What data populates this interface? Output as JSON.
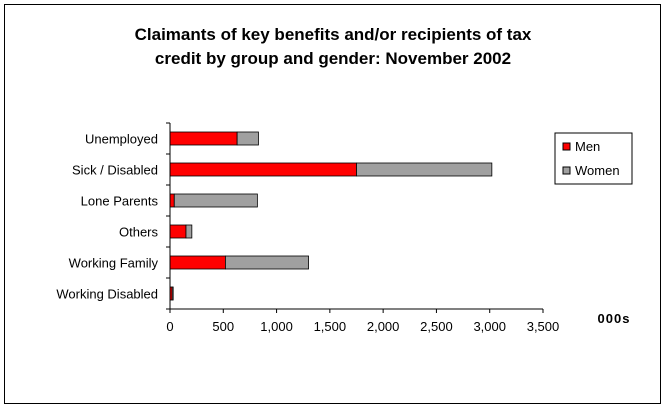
{
  "chart_data": {
    "type": "bar",
    "orientation": "horizontal",
    "stacked": true,
    "title_lines": [
      "Claimants of key benefits and/or recipients of tax",
      "credit by group and gender: November 2002"
    ],
    "xlabel": "000s",
    "categories": [
      "Unemployed",
      "Sick / Disabled",
      "Lone Parents",
      "Others",
      "Working Family",
      "Working Disabled"
    ],
    "series": [
      {
        "name": "Men",
        "color": "#ff0000",
        "values": [
          630,
          1750,
          40,
          150,
          520,
          20
        ]
      },
      {
        "name": "Women",
        "color": "#a0a0a0",
        "values": [
          200,
          1270,
          780,
          55,
          780,
          10
        ]
      }
    ],
    "xlim": [
      0,
      3500
    ],
    "xticks": [
      "0",
      "500",
      "1,000",
      "1,500",
      "2,000",
      "2,500",
      "3,000",
      "3,500"
    ],
    "grid": false,
    "legend_position": "right"
  }
}
